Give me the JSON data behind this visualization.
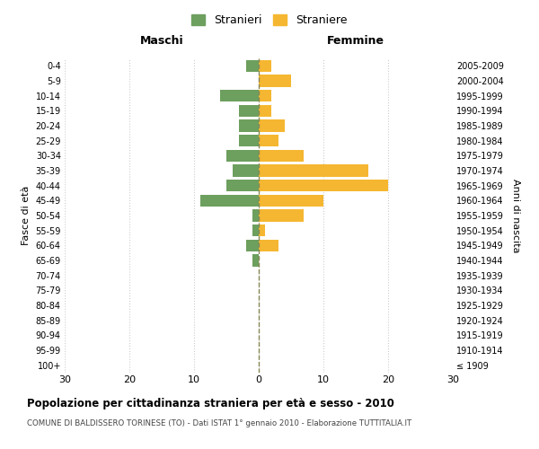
{
  "age_groups": [
    "100+",
    "95-99",
    "90-94",
    "85-89",
    "80-84",
    "75-79",
    "70-74",
    "65-69",
    "60-64",
    "55-59",
    "50-54",
    "45-49",
    "40-44",
    "35-39",
    "30-34",
    "25-29",
    "20-24",
    "15-19",
    "10-14",
    "5-9",
    "0-4"
  ],
  "birth_years": [
    "≤ 1909",
    "1910-1914",
    "1915-1919",
    "1920-1924",
    "1925-1929",
    "1930-1934",
    "1935-1939",
    "1940-1944",
    "1945-1949",
    "1950-1954",
    "1955-1959",
    "1960-1964",
    "1965-1969",
    "1970-1974",
    "1975-1979",
    "1980-1984",
    "1985-1989",
    "1990-1994",
    "1995-1999",
    "2000-2004",
    "2005-2009"
  ],
  "males": [
    0,
    0,
    0,
    0,
    0,
    0,
    0,
    1,
    2,
    1,
    1,
    9,
    5,
    4,
    5,
    3,
    3,
    3,
    6,
    0,
    2
  ],
  "females": [
    0,
    0,
    0,
    0,
    0,
    0,
    0,
    0,
    3,
    1,
    7,
    10,
    20,
    17,
    7,
    3,
    4,
    2,
    2,
    5,
    2
  ],
  "male_color": "#6d9f5e",
  "female_color": "#f5b731",
  "title": "Popolazione per cittadinanza straniera per età e sesso - 2010",
  "subtitle": "COMUNE DI BALDISSERO TORINESE (TO) - Dati ISTAT 1° gennaio 2010 - Elaborazione TUTTITALIA.IT",
  "xlabel_left": "Maschi",
  "xlabel_right": "Femmine",
  "ylabel_left": "Fasce di età",
  "ylabel_right": "Anni di nascita",
  "xlim": 30,
  "legend_stranieri": "Stranieri",
  "legend_straniere": "Straniere",
  "bg_color": "#ffffff",
  "grid_color": "#cccccc",
  "bar_height": 0.8
}
